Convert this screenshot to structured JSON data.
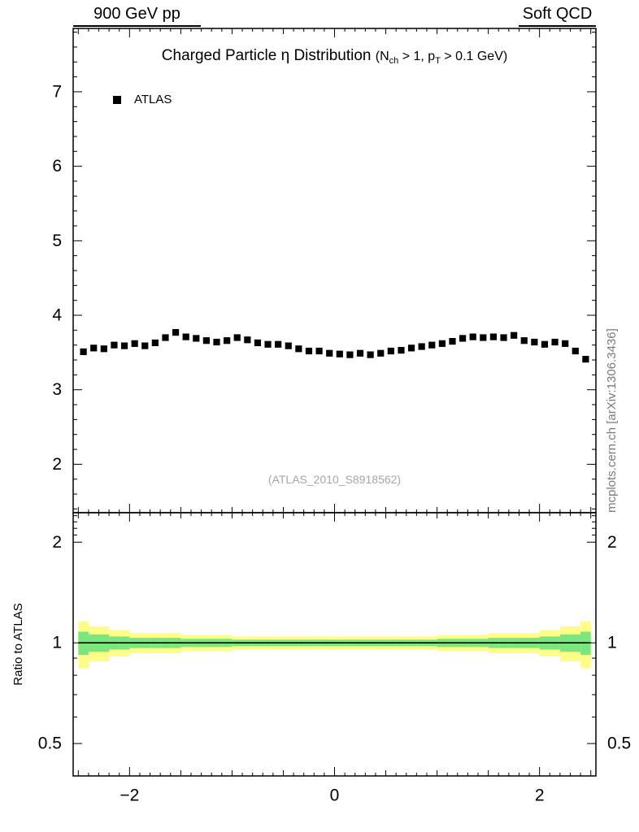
{
  "header": {
    "left_label": "900 GeV pp",
    "right_label": "Soft QCD"
  },
  "side_label": "mcplots.cern.ch [arXiv:1306.3436]",
  "watermark": "(ATLAS_2010_S8918562)",
  "chart_data": [
    {
      "type": "scatter",
      "panel": "main",
      "title": "Charged Particle η Distribution (Nch > 1, pT > 0.1 GeV)",
      "title_parts": {
        "main": "Charged Particle η Distribution ",
        "c1": "(N",
        "s1": "ch",
        "c2": " > 1, p",
        "s2": "T",
        "c3": " > 0.1 GeV)"
      },
      "legend": [
        {
          "label": "ATLAS",
          "marker": "black-filled-square",
          "color": "#000000"
        }
      ],
      "xlabel": "",
      "ylabel": "",
      "grid": false,
      "xlim": [
        -2.55,
        2.55
      ],
      "ylim": [
        1.35,
        7.85
      ],
      "xticks": [
        -2,
        0,
        2
      ],
      "yticks": [
        2,
        3,
        4,
        5,
        6,
        7
      ],
      "series": [
        {
          "name": "ATLAS",
          "marker_color": "#000000",
          "x": [
            -2.45,
            -2.35,
            -2.25,
            -2.15,
            -2.05,
            -1.95,
            -1.85,
            -1.75,
            -1.65,
            -1.55,
            -1.45,
            -1.35,
            -1.25,
            -1.15,
            -1.05,
            -0.95,
            -0.85,
            -0.75,
            -0.65,
            -0.55,
            -0.45,
            -0.35,
            -0.25,
            -0.15,
            -0.05,
            0.05,
            0.15,
            0.25,
            0.35,
            0.45,
            0.55,
            0.65,
            0.75,
            0.85,
            0.95,
            1.05,
            1.15,
            1.25,
            1.35,
            1.45,
            1.55,
            1.65,
            1.75,
            1.85,
            1.95,
            2.05,
            2.15,
            2.25,
            2.35,
            2.45
          ],
          "y": [
            3.51,
            3.56,
            3.55,
            3.6,
            3.59,
            3.62,
            3.59,
            3.63,
            3.7,
            3.77,
            3.71,
            3.69,
            3.66,
            3.64,
            3.66,
            3.7,
            3.67,
            3.63,
            3.61,
            3.61,
            3.59,
            3.55,
            3.52,
            3.52,
            3.49,
            3.48,
            3.47,
            3.49,
            3.47,
            3.49,
            3.52,
            3.53,
            3.56,
            3.58,
            3.6,
            3.62,
            3.65,
            3.69,
            3.71,
            3.7,
            3.71,
            3.7,
            3.73,
            3.66,
            3.64,
            3.61,
            3.64,
            3.62,
            3.52,
            3.41
          ]
        }
      ]
    },
    {
      "type": "band",
      "panel": "ratio",
      "ylabel": "Ratio to ATLAS",
      "yscale": "log",
      "ylim": [
        0.4,
        2.45
      ],
      "yticks": [
        0.5,
        1,
        2
      ],
      "yticks_minor": [
        0.4,
        0.6,
        0.7,
        0.8,
        0.9,
        2.1,
        2.2,
        2.3,
        2.4
      ],
      "xticks": [
        -2,
        0,
        2
      ],
      "bin_width": 0.1,
      "reference_line": 1,
      "x": [
        -2.45,
        -2.35,
        -2.25,
        -2.15,
        -2.05,
        -1.95,
        -1.85,
        -1.75,
        -1.65,
        -1.55,
        -1.45,
        -1.35,
        -1.25,
        -1.15,
        -1.05,
        -0.95,
        -0.85,
        -0.75,
        -0.65,
        -0.55,
        -0.45,
        -0.35,
        -0.25,
        -0.15,
        -0.05,
        0.05,
        0.15,
        0.25,
        0.35,
        0.45,
        0.55,
        0.65,
        0.75,
        0.85,
        0.95,
        1.05,
        1.15,
        1.25,
        1.35,
        1.45,
        1.55,
        1.65,
        1.75,
        1.85,
        1.95,
        2.05,
        2.15,
        2.25,
        2.35,
        2.45
      ],
      "bands": {
        "outer_halfwidth": [
          0.16,
          0.12,
          0.12,
          0.09,
          0.09,
          0.07,
          0.07,
          0.07,
          0.07,
          0.07,
          0.055,
          0.055,
          0.055,
          0.055,
          0.055,
          0.045,
          0.045,
          0.045,
          0.045,
          0.045,
          0.045,
          0.045,
          0.045,
          0.045,
          0.045,
          0.045,
          0.045,
          0.045,
          0.045,
          0.045,
          0.045,
          0.045,
          0.045,
          0.045,
          0.045,
          0.055,
          0.055,
          0.055,
          0.055,
          0.055,
          0.07,
          0.07,
          0.07,
          0.07,
          0.07,
          0.09,
          0.09,
          0.12,
          0.12,
          0.16
        ],
        "inner_halfwidth": [
          0.08,
          0.06,
          0.06,
          0.045,
          0.045,
          0.035,
          0.035,
          0.035,
          0.035,
          0.035,
          0.028,
          0.028,
          0.028,
          0.028,
          0.028,
          0.022,
          0.022,
          0.022,
          0.022,
          0.022,
          0.022,
          0.022,
          0.022,
          0.022,
          0.022,
          0.022,
          0.022,
          0.022,
          0.022,
          0.022,
          0.022,
          0.022,
          0.022,
          0.022,
          0.022,
          0.028,
          0.028,
          0.028,
          0.028,
          0.028,
          0.035,
          0.035,
          0.035,
          0.035,
          0.035,
          0.045,
          0.045,
          0.06,
          0.06,
          0.08
        ],
        "outer_color": "#fdfd87",
        "inner_color": "#7be67e",
        "line_color": "#000000"
      }
    }
  ]
}
